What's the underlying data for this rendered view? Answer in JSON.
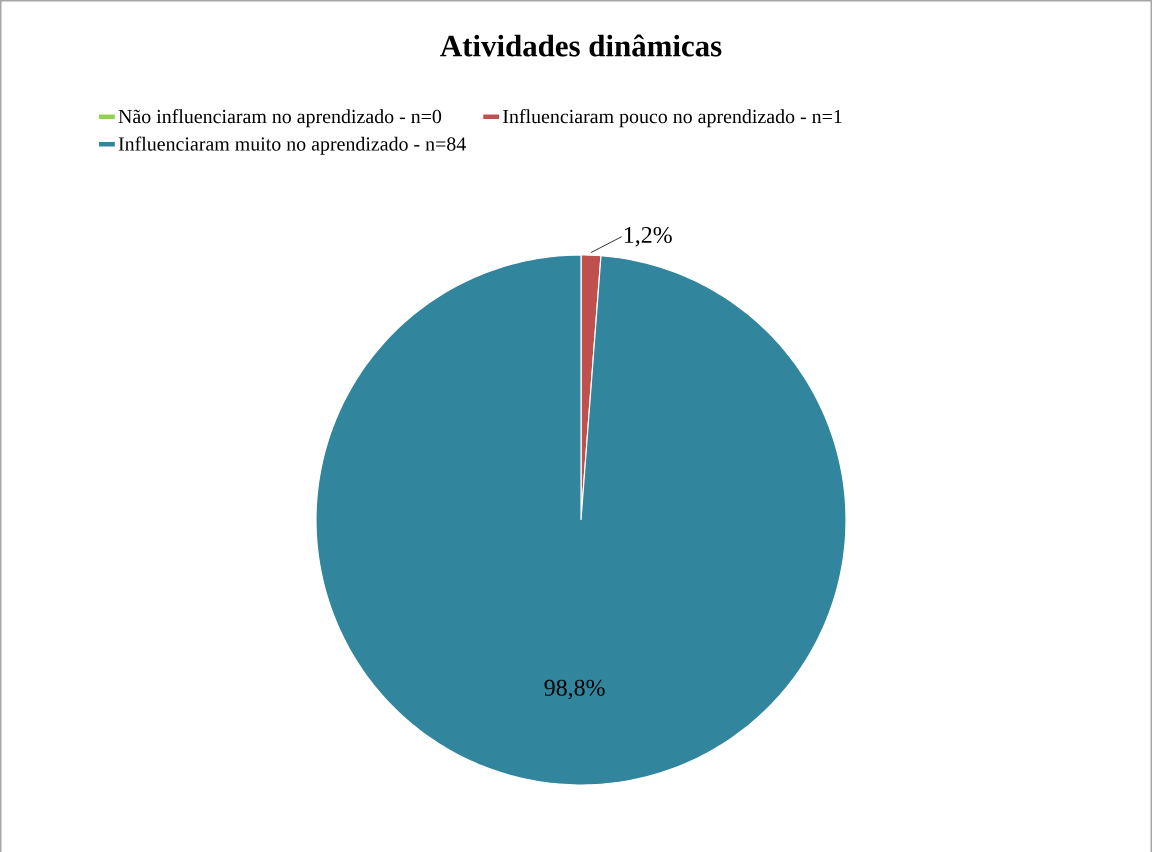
{
  "chart_data": {
    "type": "pie",
    "title": "Atividades dinâmicas",
    "categories": [
      "Não influenciaram no aprendizado - n=0",
      "Influenciaram pouco no aprendizado - n=1",
      "Influenciaram muito no aprendizado - n=84"
    ],
    "values": [
      0,
      1.2,
      98.8
    ],
    "colors": [
      "#92d050",
      "#c0504d",
      "#31859c"
    ],
    "value_labels": [
      null,
      "1,2%",
      "98,8%"
    ],
    "legend": "top"
  }
}
